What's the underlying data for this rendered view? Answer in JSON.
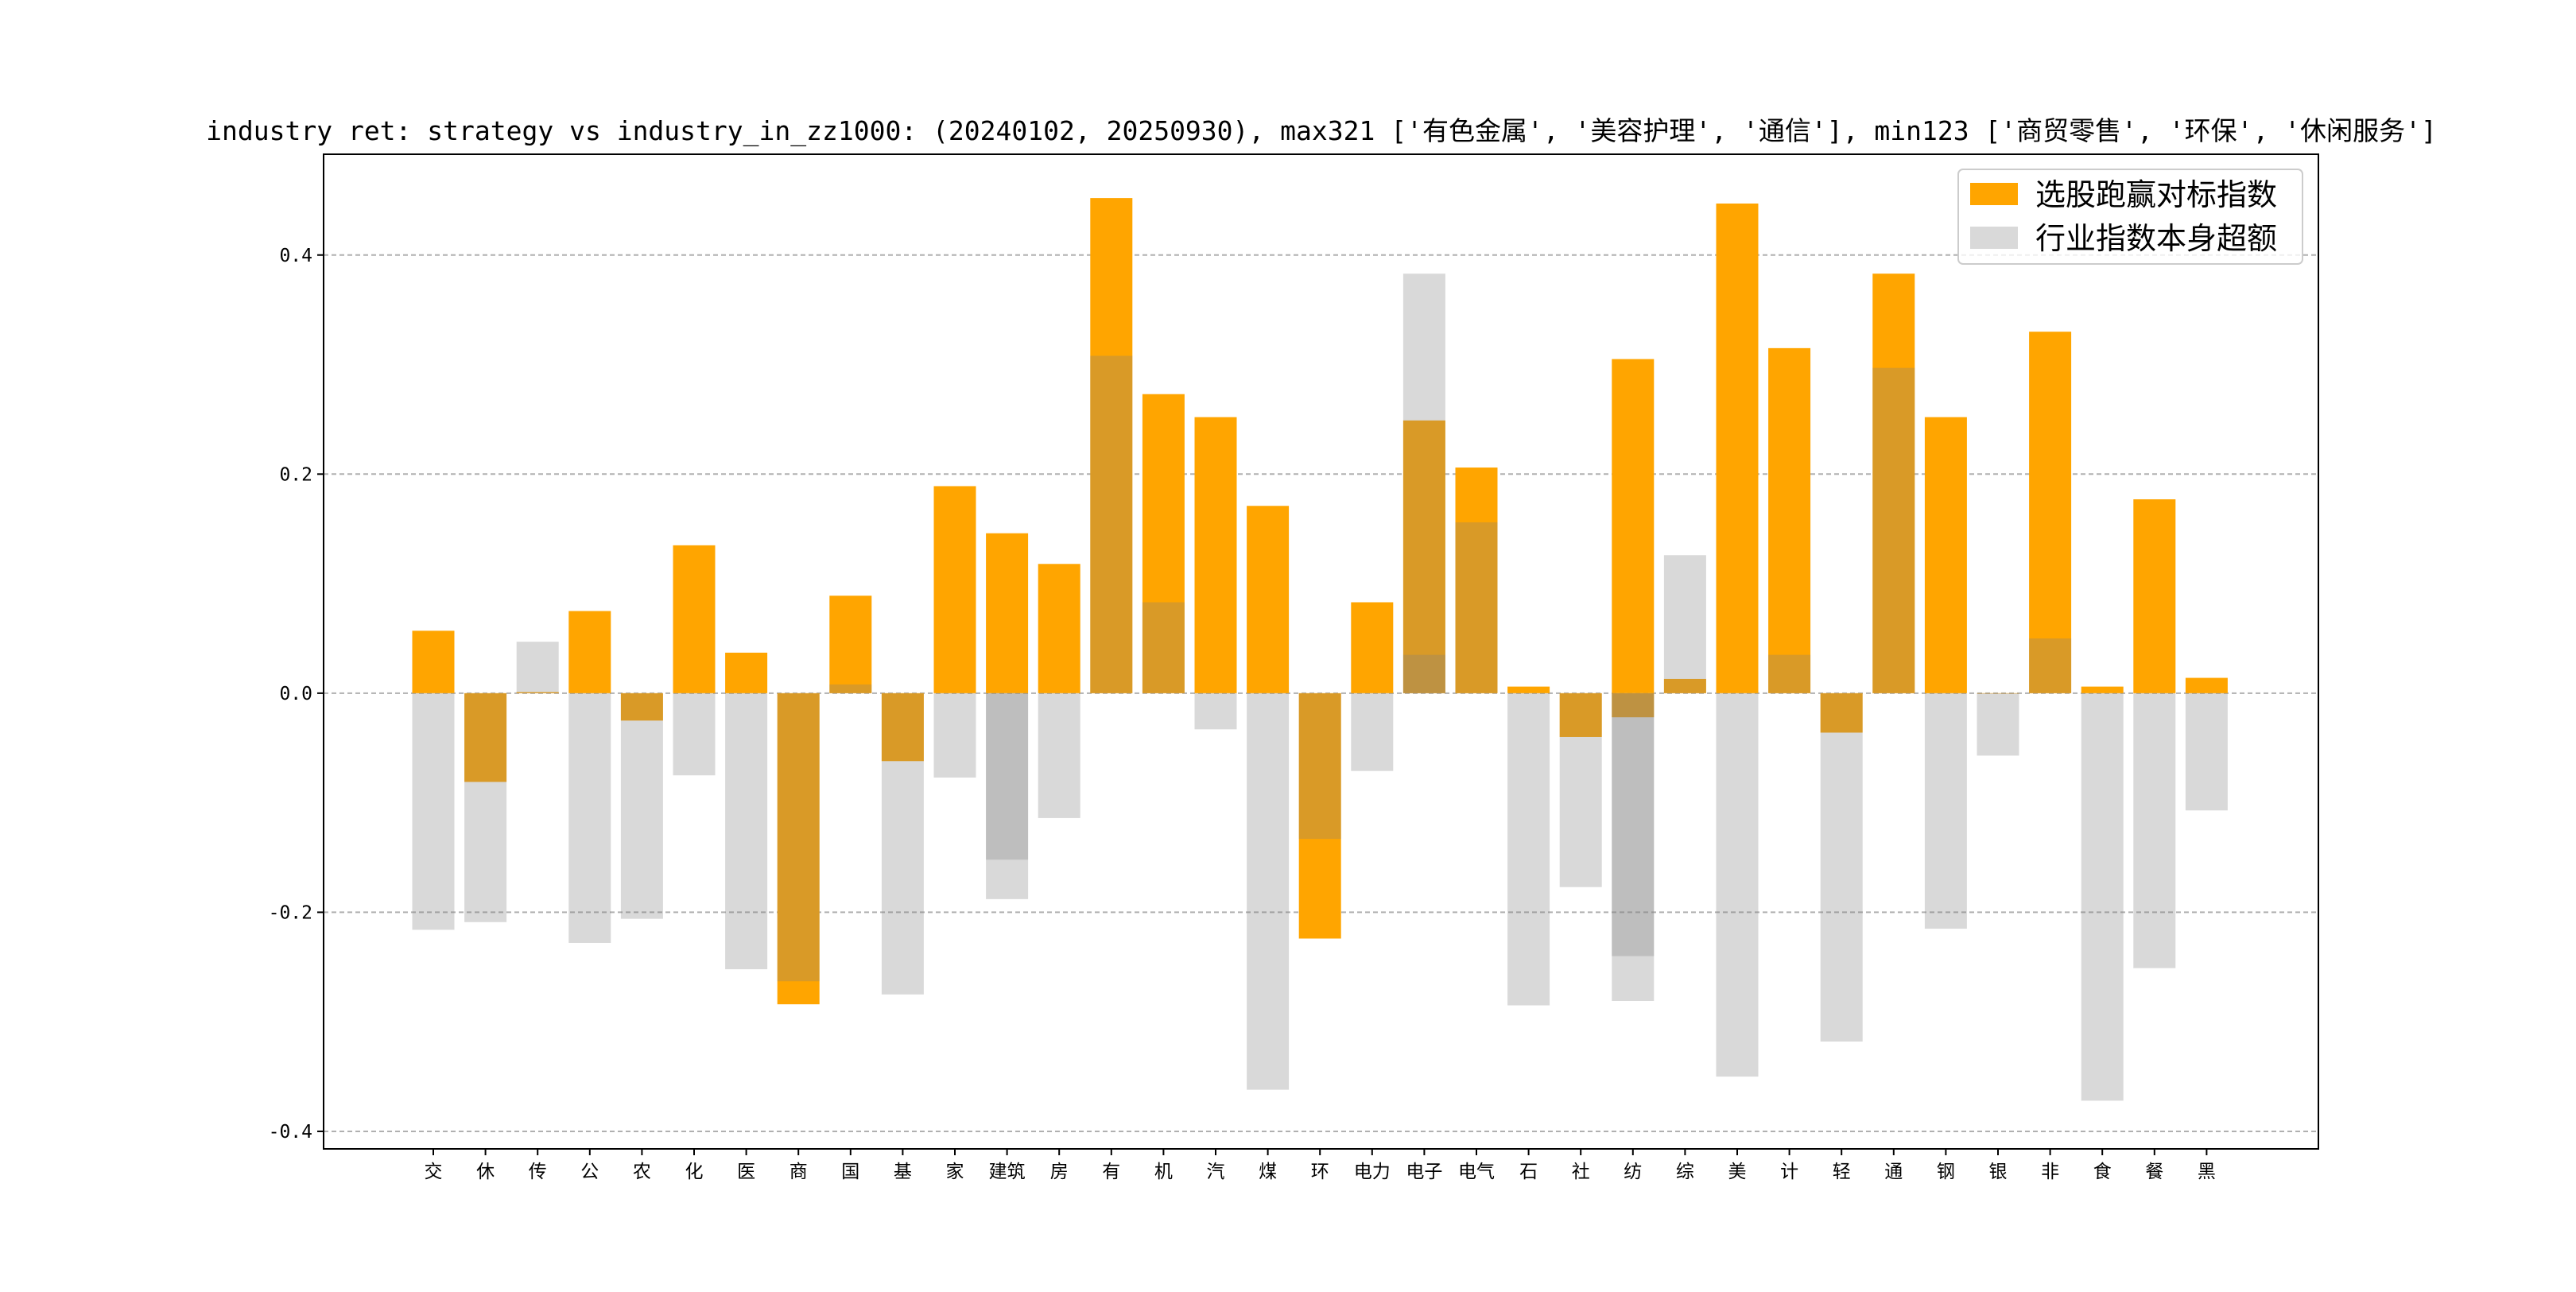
{
  "chart_data": {
    "type": "bar",
    "title": "industry ret: strategy vs industry_in_zz1000: (20240102, 20250930), max321 ['有色金属', '美容护理', '通信'], min123 ['商贸零售', '环保', '休闲服务']",
    "xlabel": "",
    "ylabel": "",
    "ylim": [
      -0.416,
      0.492
    ],
    "yticks": [
      -0.4,
      -0.2,
      0.0,
      0.2,
      0.4
    ],
    "ytick_labels": [
      "-0.4",
      "-0.2",
      "0.0",
      "0.2",
      "0.4"
    ],
    "grid": "y dashed",
    "legend_position": "top-right",
    "categories": [
      "交",
      "休",
      "传",
      "公",
      "农",
      "化",
      "医",
      "商",
      "国",
      "基",
      "家",
      "建筑",
      "房",
      "有",
      "机",
      "汽",
      "煤",
      "环",
      "电力",
      "电子",
      "电气",
      "石",
      "社",
      "纺",
      "综",
      "美",
      "计",
      "轻",
      "通",
      "钢",
      "银",
      "非",
      "食",
      "餐",
      "黑"
    ],
    "series": [
      {
        "name": "选股跑赢对标指数",
        "color": "#FFA500",
        "values": [
          [
            0.057
          ],
          [
            -0.081
          ],
          [
            0.001
          ],
          [
            0.075
          ],
          [
            -0.025
          ],
          [
            0.135
          ],
          [
            0.037
          ],
          [
            -0.284
          ],
          [
            0.089
          ],
          [
            -0.062
          ],
          [
            0.189
          ],
          [
            0.146
          ],
          [
            0.118
          ],
          [
            0.452
          ],
          [
            0.273
          ],
          [
            0.252
          ],
          [
            0.171
          ],
          [
            -0.224
          ],
          [
            0.083
          ],
          [
            0.249
          ],
          [
            0.206
          ],
          [
            0.006
          ],
          [
            -0.04
          ],
          [
            0.305,
            -0.022
          ],
          [
            0.013
          ],
          [
            0.447
          ],
          [
            0.315
          ],
          [
            -0.036
          ],
          [
            0.383
          ],
          [
            0.252
          ],
          [
            0.0
          ],
          [
            0.33
          ],
          [
            0.006
          ],
          [
            0.177
          ],
          [
            0.014
          ]
        ]
      },
      {
        "name": "行业指数本身超额",
        "color": "#808080",
        "values": [
          [
            -0.216
          ],
          [
            -0.209
          ],
          [
            0.047
          ],
          [
            -0.228
          ],
          [
            -0.206
          ],
          [
            -0.075
          ],
          [
            -0.252
          ],
          [
            -0.263
          ],
          [
            0.008
          ],
          [
            -0.275
          ],
          [
            -0.077
          ],
          [
            -0.152,
            -0.188
          ],
          [
            -0.114
          ],
          [
            0.308
          ],
          [
            0.083
          ],
          [
            -0.033
          ],
          [
            -0.362
          ],
          [
            -0.133
          ],
          [
            -0.071
          ],
          [
            0.383,
            0.035
          ],
          [
            0.156
          ],
          [
            -0.285
          ],
          [
            -0.177
          ],
          [
            -0.24,
            -0.281
          ],
          [
            0.126
          ],
          [
            -0.35
          ],
          [
            0.035
          ],
          [
            -0.318
          ],
          [
            0.297
          ],
          [
            -0.215
          ],
          [
            -0.057
          ],
          [
            0.05
          ],
          [
            -0.372
          ],
          [
            -0.251
          ],
          [
            -0.107
          ]
        ]
      }
    ]
  }
}
